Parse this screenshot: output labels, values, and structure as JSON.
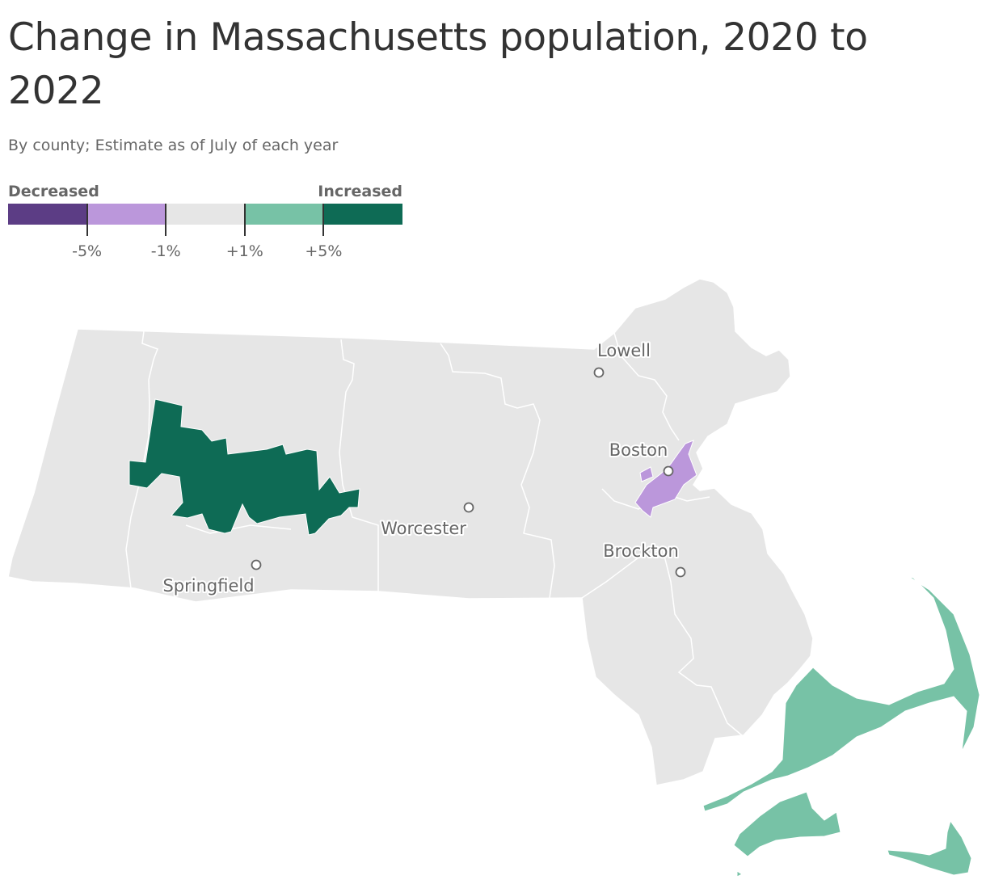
{
  "title": "Change in Massachusetts population, 2020 to 2022",
  "subtitle": "By county; Estimate as of July of each year",
  "legend": {
    "low_label": "Decreased",
    "high_label": "Increased",
    "colors": [
      "#5c3d85",
      "#bb97db",
      "#e6e6e6",
      "#77c2a6",
      "#0e6b55"
    ],
    "ticks": [
      "-5%",
      "-1%",
      "+1%",
      "+5%"
    ]
  },
  "map": {
    "state": "Massachusetts",
    "base_color": "#e6e6e6",
    "border_color": "#ffffff",
    "regions": [
      {
        "id": "hampshire",
        "category": "+5% or more",
        "color": "#0e6b55"
      },
      {
        "id": "suffolk",
        "category": "-5% to -1%",
        "color": "#bb97db"
      },
      {
        "id": "barnstable",
        "category": "+1% to +5%",
        "color": "#77c2a6"
      },
      {
        "id": "dukes",
        "category": "+1% to +5%",
        "color": "#77c2a6"
      },
      {
        "id": "nantucket",
        "category": "+1% to +5%",
        "color": "#77c2a6"
      }
    ],
    "cities": [
      {
        "name": "Lowell"
      },
      {
        "name": "Boston"
      },
      {
        "name": "Worcester"
      },
      {
        "name": "Brockton"
      },
      {
        "name": "Springfield"
      }
    ]
  }
}
